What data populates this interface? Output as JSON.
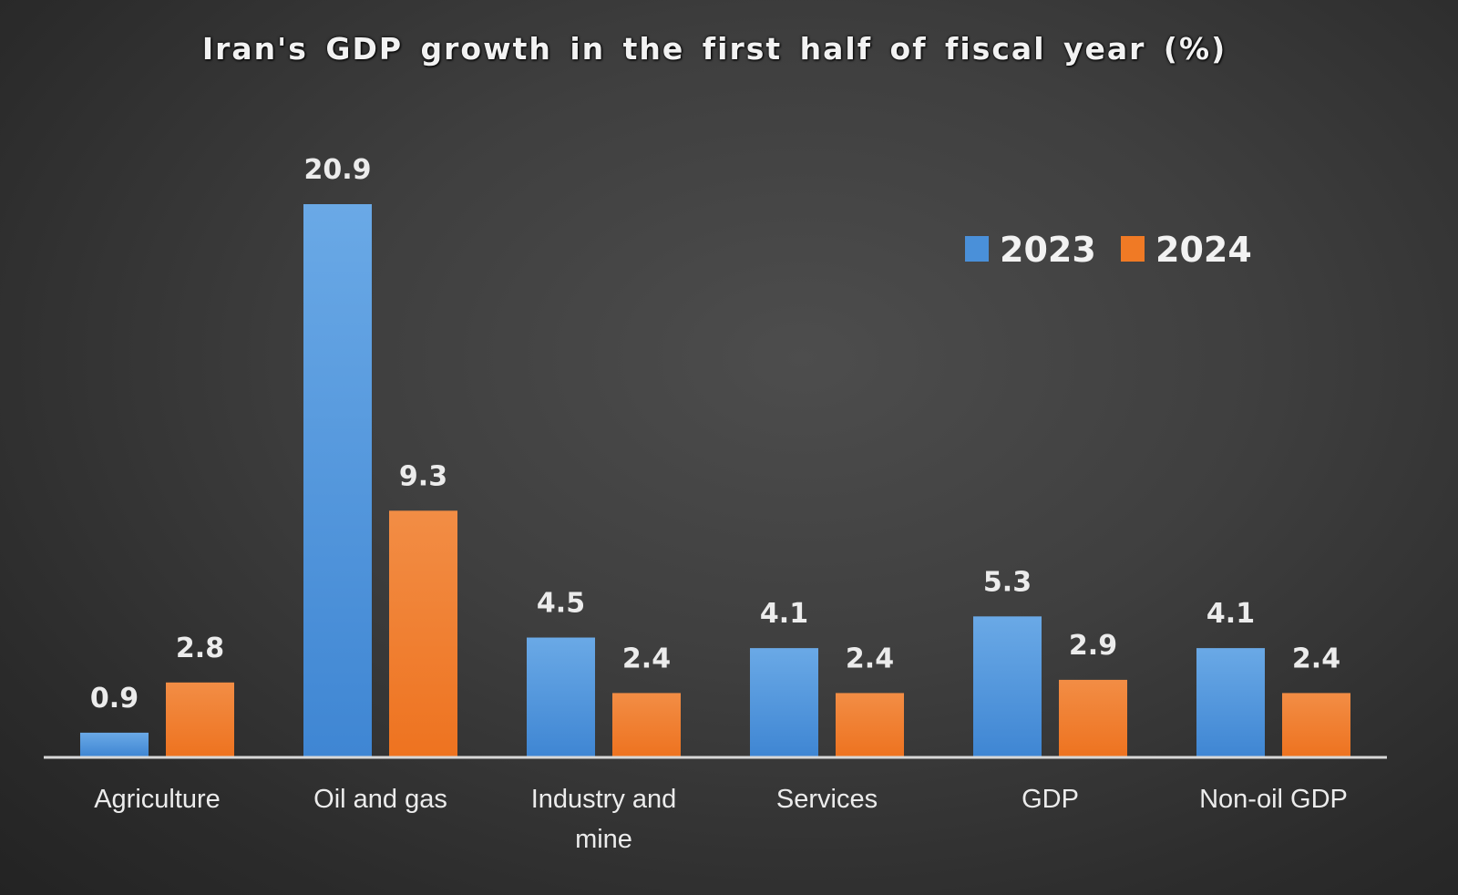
{
  "chart_data": {
    "type": "bar",
    "title": "Iran's  GDP growth in the first half of fiscal  year (%)",
    "xlabel": "",
    "ylabel": "",
    "ylim": [
      0,
      21.5
    ],
    "grid": false,
    "legend": "top-right",
    "categories": [
      "Agriculture",
      "Oil and gas",
      "Industry and mine",
      "Services",
      "GDP",
      "Non-oil GDP"
    ],
    "category_lines": [
      [
        "Agriculture"
      ],
      [
        "Oil and gas"
      ],
      [
        "Industry and",
        "mine"
      ],
      [
        "Services"
      ],
      [
        "GDP"
      ],
      [
        "Non-oil GDP"
      ]
    ],
    "series": [
      {
        "name": "2023",
        "color": "#4a90d9",
        "values": [
          0.9,
          20.9,
          4.5,
          4.1,
          5.3,
          4.1
        ],
        "labels": [
          "0.9",
          "20.9",
          "4.5",
          "4.1",
          "5.3",
          "4.1"
        ]
      },
      {
        "name": "2024",
        "color": "#f07a25",
        "values": [
          2.8,
          9.3,
          2.4,
          2.4,
          2.9,
          2.4
        ],
        "labels": [
          "2.8",
          "9.3",
          "2.4",
          "2.4",
          "2.9",
          "2.4"
        ]
      }
    ]
  }
}
